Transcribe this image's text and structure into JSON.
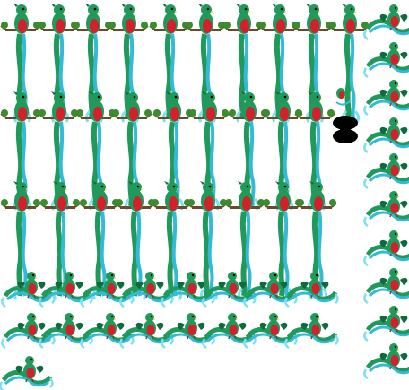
{
  "sprite_sheet": {
    "subject": "quetzal-bird",
    "background_color": "#ffffff",
    "palette": {
      "body_green": "#1f9a5a",
      "dark_green": "#0f6a3f",
      "chest_red": "#d51f2a",
      "tail_cyan": "#34b9d6",
      "tail_light": "#7fe1f0",
      "branch_brown": "#6b4a2a",
      "leaf_green": "#3a8c2f",
      "beak_yellow": "#f2d23a",
      "shadow_black": "#000000"
    },
    "groups": [
      {
        "name": "perched-long-tail",
        "rows": 3,
        "frames_per_row": [
          10,
          10,
          9
        ]
      },
      {
        "name": "flying-side",
        "rows": 2,
        "frames_per_row": [
          8,
          8
        ]
      },
      {
        "name": "flying-column",
        "rows": 10,
        "frames_per_row": [
          1,
          1,
          1,
          1,
          1,
          1,
          1,
          1,
          1,
          1
        ]
      },
      {
        "name": "flying-single",
        "rows": 1,
        "frames_per_row": [
          1
        ]
      }
    ],
    "shadow_sprite": {
      "icon": "shadow-blob-icon"
    }
  }
}
